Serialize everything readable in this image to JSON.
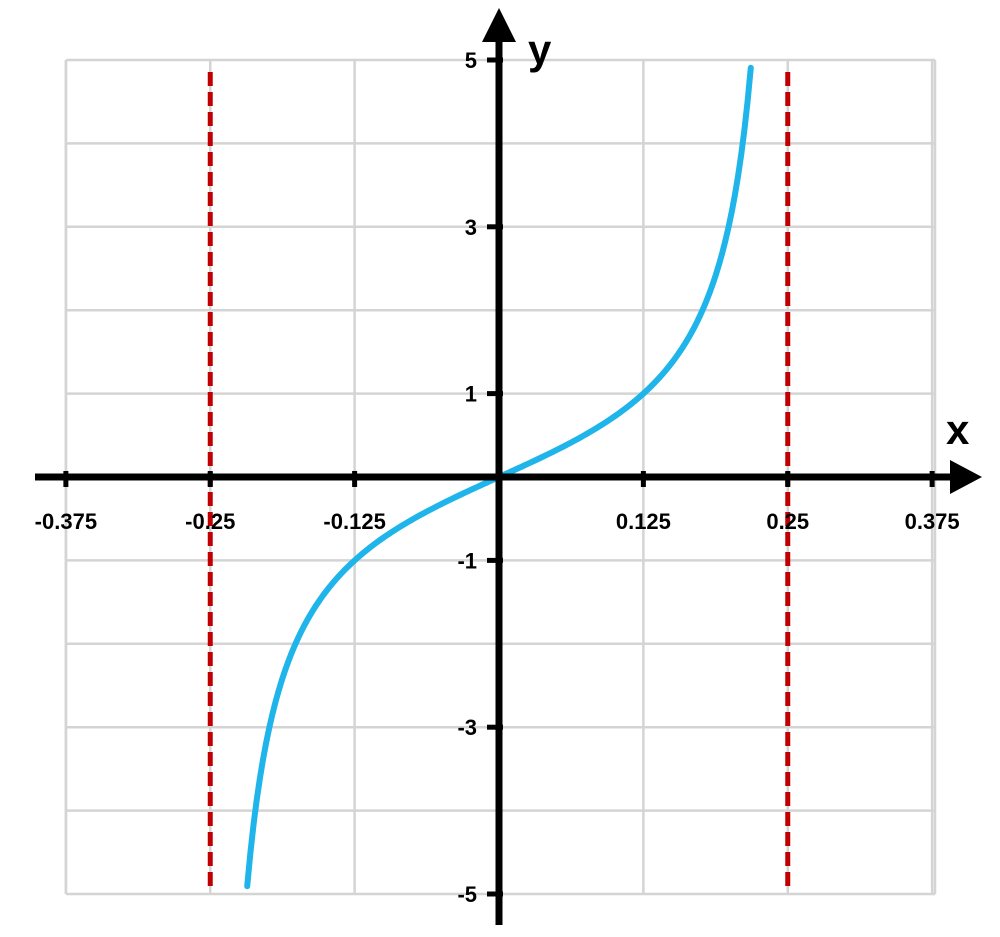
{
  "chart_data": {
    "type": "line",
    "xlabel": "x",
    "ylabel": "y",
    "xlim": [
      -0.406,
      0.406
    ],
    "ylim": [
      -5,
      5
    ],
    "x_ticks": [
      -0.375,
      -0.25,
      -0.125,
      0.125,
      0.25,
      0.375
    ],
    "x_tick_labels": [
      "-0.375",
      "-0.25",
      "-0.125",
      "0.125",
      "0.25",
      "0.375"
    ],
    "y_ticks": [
      -5,
      -3,
      -1,
      1,
      3,
      5
    ],
    "y_tick_labels": [
      "-5",
      "-3",
      "-1",
      "1",
      "3",
      "5"
    ],
    "grid": true,
    "grid_x_step": 0.125,
    "grid_y_step": 1,
    "series": [
      {
        "function": "tan(2*pi*x)",
        "x_range": [
          -0.218,
          0.218
        ],
        "color": "#1fb5ea",
        "points": [
          [
            -0.218,
            -5.0
          ],
          [
            -0.2,
            -3.08
          ],
          [
            -0.175,
            -1.96
          ],
          [
            -0.15,
            -1.38
          ],
          [
            -0.125,
            -1.0
          ],
          [
            -0.1,
            -0.73
          ],
          [
            -0.075,
            -0.51
          ],
          [
            -0.05,
            -0.32
          ],
          [
            -0.025,
            -0.16
          ],
          [
            0,
            0
          ],
          [
            0.025,
            0.16
          ],
          [
            0.05,
            0.32
          ],
          [
            0.075,
            0.51
          ],
          [
            0.1,
            0.73
          ],
          [
            0.125,
            1.0
          ],
          [
            0.15,
            1.38
          ],
          [
            0.175,
            1.96
          ],
          [
            0.2,
            3.08
          ],
          [
            0.218,
            5.0
          ]
        ]
      }
    ],
    "asymptotes": [
      {
        "x": -0.25,
        "style": "dashed",
        "color": "#c00000"
      },
      {
        "x": 0.25,
        "style": "dashed",
        "color": "#c00000"
      }
    ],
    "colors": {
      "grid": "#d4d4d4",
      "axes": "#000000",
      "curve": "#1fb5ea",
      "asymptote": "#c00000"
    }
  }
}
